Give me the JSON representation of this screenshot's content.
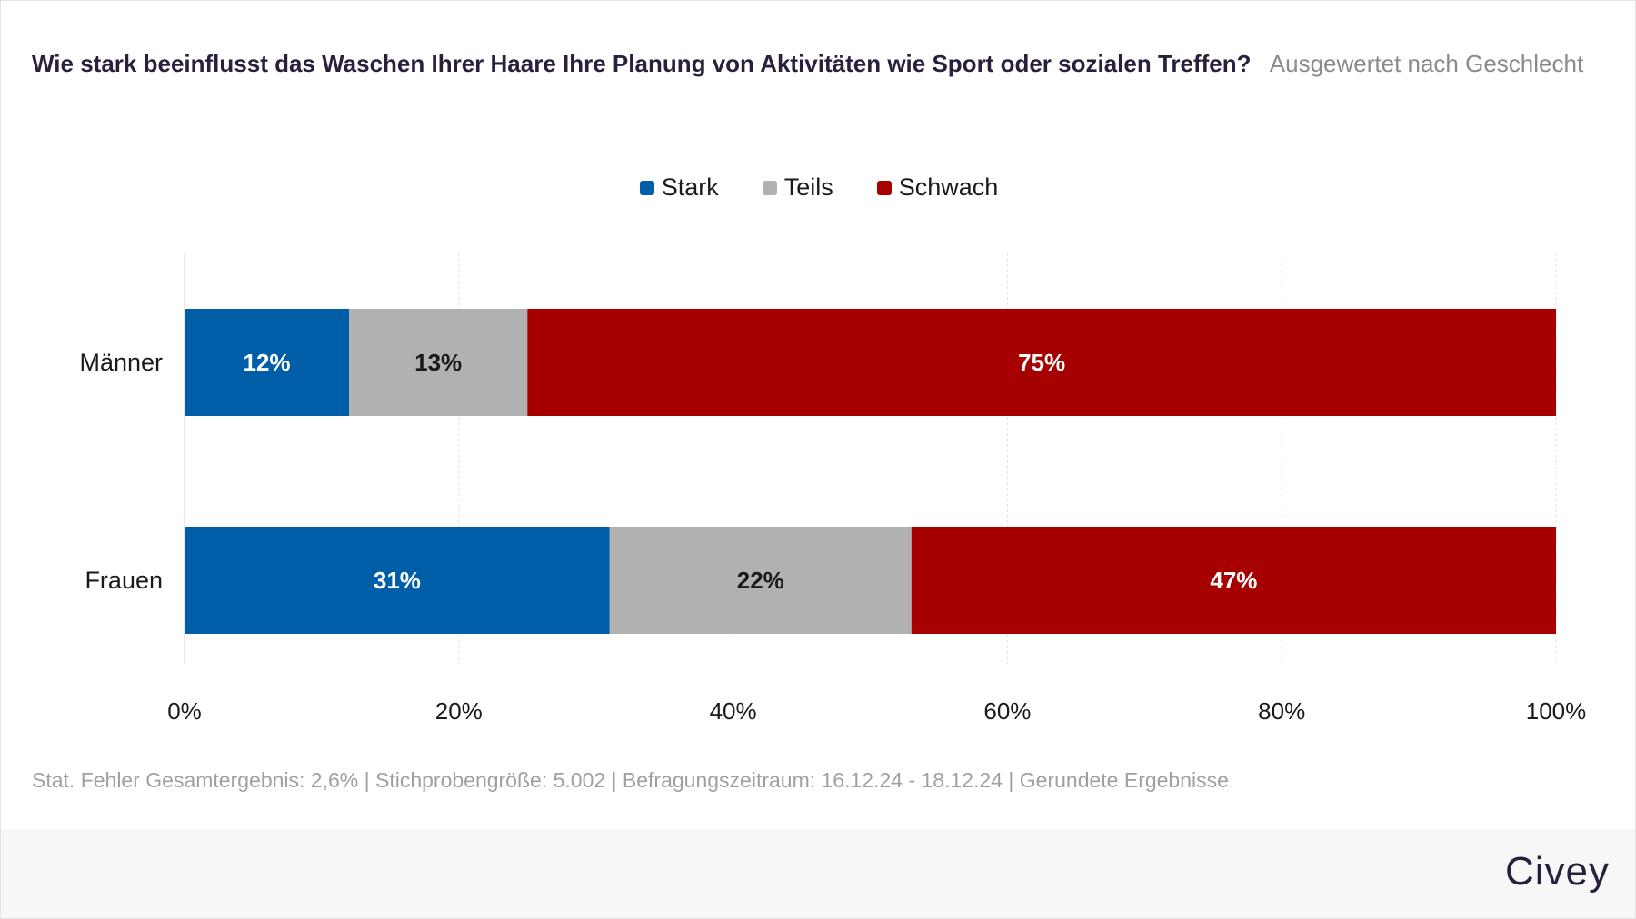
{
  "header": {
    "title": "Wie stark beeinflusst das Waschen Ihrer Haare Ihre Planung von Aktivitäten wie Sport oder sozialen Treffen?",
    "subtitle": "Ausgewertet nach Geschlecht"
  },
  "colors": {
    "stark": "#005ea8",
    "teils": "#b1b1b1",
    "schwach": "#a60000",
    "label_light": "#ffffff",
    "label_dark": "#1a1a1a"
  },
  "chart_data": {
    "type": "bar",
    "orientation": "horizontal",
    "stacked": true,
    "categories": [
      "Männer",
      "Frauen"
    ],
    "series": [
      {
        "name": "Stark",
        "values": [
          12,
          31
        ],
        "labels": [
          "12%",
          "31%"
        ]
      },
      {
        "name": "Teils",
        "values": [
          13,
          22
        ],
        "labels": [
          "13%",
          "22%"
        ]
      },
      {
        "name": "Schwach",
        "values": [
          75,
          47
        ],
        "labels": [
          "75%",
          "47%"
        ]
      }
    ],
    "xlim": [
      0,
      100
    ],
    "xticks": [
      0,
      20,
      40,
      60,
      80,
      100
    ],
    "xtick_labels": [
      "0%",
      "20%",
      "40%",
      "60%",
      "80%",
      "100%"
    ],
    "grid": true,
    "legend_position": "top-center"
  },
  "footnote": "Stat. Fehler Gesamtergebnis: 2,6% | Stichprobengröße: 5.002 | Befragungszeitraum: 16.12.24 - 18.12.24 | Gerundete Ergebnisse",
  "brand": "Civey"
}
